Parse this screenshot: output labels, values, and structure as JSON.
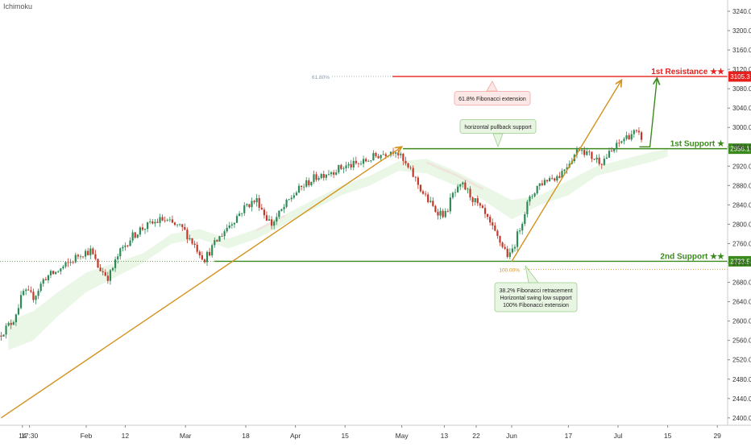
{
  "indicator_label": "Ichimoku",
  "chart_data": {
    "type": "candlestick",
    "price_axis": {
      "ticks": [
        "3240.0",
        "3200.0",
        "3160.0",
        "3120.0",
        "3080.0",
        "3040.0",
        "3000.0",
        "2960.0",
        "2920.0",
        "2880.0",
        "2840.0",
        "2800.0",
        "2760.0",
        "2720.0",
        "2680.0",
        "2640.0",
        "2600.0",
        "2560.0",
        "2520.0",
        "2480.0",
        "2440.0",
        "2400.0"
      ],
      "ylim": [
        2392,
        3252
      ]
    },
    "time_axis": {
      "ticks": [
        {
          "label": "14",
          "d": -18
        },
        {
          "label": "17:30",
          "d": -16
        },
        {
          "label": "Feb",
          "d": 0
        },
        {
          "label": "12",
          "d": 11
        },
        {
          "label": "Mar",
          "d": 28
        },
        {
          "label": "18",
          "d": 45
        },
        {
          "label": "Apr",
          "d": 59
        },
        {
          "label": "15",
          "d": 73
        },
        {
          "label": "May",
          "d": 89
        },
        {
          "label": "13",
          "d": 101
        },
        {
          "label": "22",
          "d": 110
        },
        {
          "label": "Jun",
          "d": 120
        },
        {
          "label": "17",
          "d": 136
        },
        {
          "label": "Jul",
          "d": 150
        },
        {
          "label": "15",
          "d": 164
        },
        {
          "label": "29",
          "d": 178
        }
      ],
      "note": "d = days since Feb 1"
    },
    "levels": [
      {
        "name": "1st Resistance ★★",
        "price": 3105.3,
        "tag": "3105.3",
        "color": "#e5201d"
      },
      {
        "name": "1st Support ★",
        "price": 2956.1,
        "tag": "2956.1",
        "color": "#3c8a1e"
      },
      {
        "name": "2nd Support ★★",
        "price": 2723.5,
        "tag": "2723.5",
        "color": "#3c8a1e"
      }
    ],
    "fib_marks": [
      {
        "label": "61.80%",
        "price": 3105.3
      },
      {
        "label": "100.00%",
        "price": 2707
      }
    ],
    "annotations": [
      {
        "text": [
          "61.8% Fibonacci extension"
        ],
        "style": "red"
      },
      {
        "text": [
          "horizontal pullback support"
        ],
        "style": "green"
      },
      {
        "text": [
          "38.2% Fibonacci retracement",
          "Horizontal swing low support",
          "100% Fibonacci extension"
        ],
        "style": "green"
      }
    ],
    "trendlines": [
      {
        "from": {
          "d": -24,
          "p": 2400
        },
        "to": {
          "d": 89,
          "p": 2960
        },
        "color": "#d4921e"
      },
      {
        "from": {
          "d": 120,
          "p": 2723
        },
        "to": {
          "d": 151,
          "p": 3098
        },
        "color": "#d4921e"
      }
    ],
    "projection_arrow": {
      "from": {
        "d": 159,
        "p": 2960
      },
      "to": {
        "d": 161,
        "p": 3102
      },
      "color": "#3c8a1e"
    },
    "price_path": [
      {
        "d": -24,
        "p": 2570
      },
      {
        "d": -20,
        "p": 2600
      },
      {
        "d": -17,
        "p": 2660
      },
      {
        "d": -14,
        "p": 2650
      },
      {
        "d": -11,
        "p": 2690
      },
      {
        "d": -8,
        "p": 2700
      },
      {
        "d": -4,
        "p": 2720
      },
      {
        "d": -1,
        "p": 2740
      },
      {
        "d": 2,
        "p": 2745
      },
      {
        "d": 4,
        "p": 2712
      },
      {
        "d": 7,
        "p": 2690
      },
      {
        "d": 10,
        "p": 2740
      },
      {
        "d": 13,
        "p": 2770
      },
      {
        "d": 16,
        "p": 2790
      },
      {
        "d": 19,
        "p": 2800
      },
      {
        "d": 22,
        "p": 2810
      },
      {
        "d": 25,
        "p": 2800
      },
      {
        "d": 28,
        "p": 2790
      },
      {
        "d": 31,
        "p": 2760
      },
      {
        "d": 34,
        "p": 2728
      },
      {
        "d": 37,
        "p": 2760
      },
      {
        "d": 40,
        "p": 2790
      },
      {
        "d": 43,
        "p": 2815
      },
      {
        "d": 46,
        "p": 2840
      },
      {
        "d": 49,
        "p": 2850
      },
      {
        "d": 51,
        "p": 2820
      },
      {
        "d": 53,
        "p": 2800
      },
      {
        "d": 56,
        "p": 2830
      },
      {
        "d": 59,
        "p": 2860
      },
      {
        "d": 62,
        "p": 2880
      },
      {
        "d": 66,
        "p": 2900
      },
      {
        "d": 70,
        "p": 2910
      },
      {
        "d": 74,
        "p": 2920
      },
      {
        "d": 78,
        "p": 2925
      },
      {
        "d": 82,
        "p": 2940
      },
      {
        "d": 86,
        "p": 2950
      },
      {
        "d": 88,
        "p": 2955
      },
      {
        "d": 90,
        "p": 2930
      },
      {
        "d": 93,
        "p": 2900
      },
      {
        "d": 96,
        "p": 2860
      },
      {
        "d": 99,
        "p": 2830
      },
      {
        "d": 102,
        "p": 2820
      },
      {
        "d": 104,
        "p": 2860
      },
      {
        "d": 107,
        "p": 2880
      },
      {
        "d": 110,
        "p": 2850
      },
      {
        "d": 113,
        "p": 2820
      },
      {
        "d": 116,
        "p": 2780
      },
      {
        "d": 119,
        "p": 2745
      },
      {
        "d": 120,
        "p": 2730
      },
      {
        "d": 122,
        "p": 2770
      },
      {
        "d": 125,
        "p": 2840
      },
      {
        "d": 128,
        "p": 2880
      },
      {
        "d": 131,
        "p": 2895
      },
      {
        "d": 134,
        "p": 2900
      },
      {
        "d": 137,
        "p": 2930
      },
      {
        "d": 140,
        "p": 2960
      },
      {
        "d": 143,
        "p": 2940
      },
      {
        "d": 146,
        "p": 2930
      },
      {
        "d": 149,
        "p": 2950
      },
      {
        "d": 152,
        "p": 2975
      },
      {
        "d": 155,
        "p": 2990
      },
      {
        "d": 157,
        "p": 2980
      }
    ],
    "cloud_path": [
      {
        "d": -22,
        "top": 2600,
        "bot": 2540
      },
      {
        "d": -15,
        "top": 2620,
        "bot": 2560
      },
      {
        "d": -8,
        "top": 2660,
        "bot": 2610
      },
      {
        "d": 0,
        "top": 2700,
        "bot": 2660
      },
      {
        "d": 8,
        "top": 2720,
        "bot": 2690
      },
      {
        "d": 16,
        "top": 2740,
        "bot": 2720
      },
      {
        "d": 24,
        "top": 2780,
        "bot": 2760
      },
      {
        "d": 32,
        "top": 2790,
        "bot": 2770
      },
      {
        "d": 40,
        "top": 2770,
        "bot": 2750
      },
      {
        "d": 48,
        "top": 2790,
        "bot": 2770
      },
      {
        "d": 56,
        "top": 2820,
        "bot": 2800
      },
      {
        "d": 64,
        "top": 2850,
        "bot": 2830
      },
      {
        "d": 72,
        "top": 2880,
        "bot": 2860
      },
      {
        "d": 80,
        "top": 2900,
        "bot": 2880
      },
      {
        "d": 88,
        "top": 2930,
        "bot": 2910
      },
      {
        "d": 96,
        "top": 2935,
        "bot": 2905
      },
      {
        "d": 104,
        "top": 2910,
        "bot": 2880
      },
      {
        "d": 112,
        "top": 2880,
        "bot": 2850
      },
      {
        "d": 120,
        "top": 2850,
        "bot": 2810
      },
      {
        "d": 128,
        "top": 2860,
        "bot": 2840
      },
      {
        "d": 136,
        "top": 2890,
        "bot": 2860
      },
      {
        "d": 144,
        "top": 2920,
        "bot": 2900
      },
      {
        "d": 152,
        "top": 2935,
        "bot": 2915
      },
      {
        "d": 160,
        "top": 2950,
        "bot": 2930
      },
      {
        "d": 164,
        "top": 2955,
        "bot": 2940
      }
    ]
  }
}
